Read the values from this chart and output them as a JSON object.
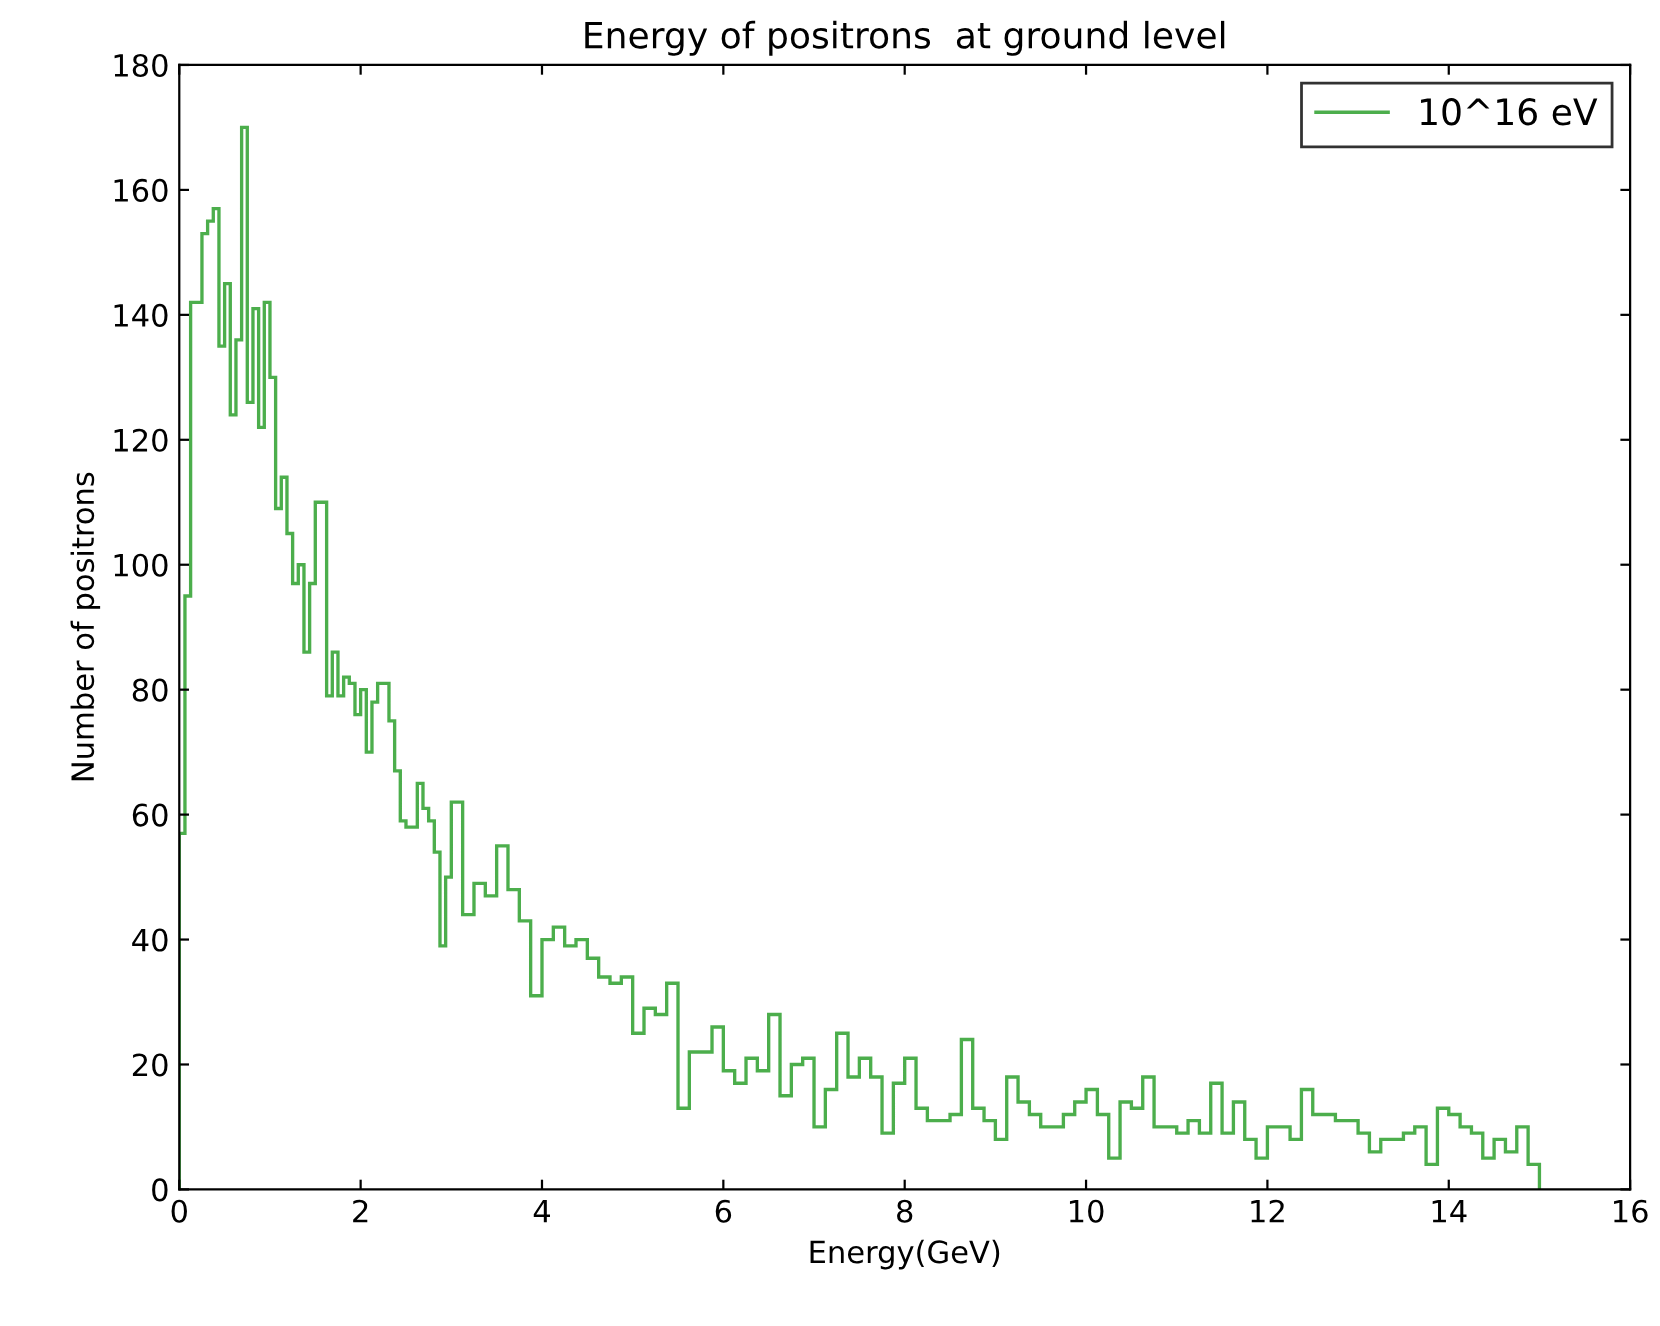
{
  "chart_data": {
    "type": "histogram",
    "title": "Energy of positrons  at ground level",
    "xlabel": "Energy(GeV)",
    "ylabel": "Number of positrons",
    "bins": [
      0,
      0.0625,
      0.125,
      0.1875,
      0.25,
      0.3125,
      0.375,
      0.4375,
      0.5,
      0.5625,
      0.625,
      0.6875,
      0.75,
      0.8125,
      0.875,
      0.9375,
      1,
      1.0625,
      1.125,
      1.1875,
      1.25,
      1.3125,
      1.375,
      1.4375,
      1.5,
      1.5625,
      1.625,
      1.6875,
      1.75,
      1.8125,
      1.875,
      1.9375,
      2,
      2.0625,
      2.125,
      2.1875,
      2.25,
      2.3125,
      2.375,
      2.4375,
      2.5,
      2.5625,
      2.625,
      2.6875,
      2.75,
      2.8125,
      2.875,
      2.9375,
      3,
      3.125,
      3.25,
      3.375,
      3.5,
      3.625,
      3.75,
      3.875,
      4,
      4.125,
      4.25,
      4.375,
      4.5,
      4.625,
      4.75,
      4.875,
      5,
      5.125,
      5.25,
      5.375,
      5.5,
      5.625,
      5.75,
      5.875,
      6,
      6.125,
      6.25,
      6.375,
      6.5,
      6.625,
      6.75,
      6.875,
      7,
      7.125,
      7.25,
      7.375,
      7.5,
      7.625,
      7.75,
      7.875,
      8,
      8.125,
      8.25,
      8.375,
      8.5,
      8.625,
      8.75,
      8.875,
      9,
      9.125,
      9.25,
      9.375,
      9.5,
      9.625,
      9.75,
      9.875,
      10,
      10.125,
      10.25,
      10.375,
      10.5,
      10.625,
      10.75,
      10.875,
      11,
      11.125,
      11.25,
      11.375,
      11.5,
      11.625,
      11.75,
      11.875,
      12,
      12.125,
      12.25,
      12.375,
      12.5,
      12.625,
      12.75,
      12.875,
      13,
      13.125,
      13.25,
      13.375,
      13.5,
      13.625,
      13.75,
      13.875,
      14,
      14.125,
      14.25,
      14.375,
      14.5,
      14.625,
      14.75,
      14.875,
      15
    ],
    "series": [
      {
        "name": "10^16 eV",
        "color": "#4cae4c",
        "values": [
          57,
          95,
          142,
          142,
          153,
          155,
          157,
          135,
          145,
          124,
          136,
          170,
          126,
          141,
          122,
          142,
          130,
          109,
          114,
          105,
          97,
          100,
          86,
          97,
          110,
          110,
          79,
          86,
          79,
          82,
          81,
          76,
          80,
          70,
          78,
          81,
          81,
          75,
          67,
          59,
          58,
          58,
          65,
          61,
          59,
          54,
          39,
          50,
          62,
          44,
          49,
          47,
          55,
          48,
          43,
          31,
          40,
          42,
          39,
          40,
          37,
          34,
          33,
          34,
          25,
          29,
          28,
          33,
          13,
          22,
          22,
          26,
          19,
          17,
          21,
          19,
          28,
          15,
          20,
          21,
          10,
          16,
          25,
          18,
          21,
          18,
          9,
          17,
          21,
          13,
          11,
          11,
          12,
          24,
          13,
          11,
          8,
          18,
          14,
          12,
          10,
          10,
          12,
          14,
          16,
          12,
          5,
          14,
          13,
          18,
          10,
          10,
          9,
          11,
          9,
          17,
          9,
          14,
          8,
          5,
          10,
          10,
          8,
          16,
          12,
          12,
          11,
          11,
          9,
          6,
          8,
          8,
          9,
          10,
          4,
          13,
          12,
          10,
          9,
          5,
          8,
          6,
          10,
          4
        ]
      }
    ],
    "xlim": [
      0,
      16
    ],
    "ylim": [
      0,
      180
    ],
    "xticks": [
      0,
      2,
      4,
      6,
      8,
      10,
      12,
      14,
      16
    ],
    "yticks": [
      0,
      20,
      40,
      60,
      80,
      100,
      120,
      140,
      160,
      180
    ],
    "legend": "top right",
    "grid": false
  }
}
